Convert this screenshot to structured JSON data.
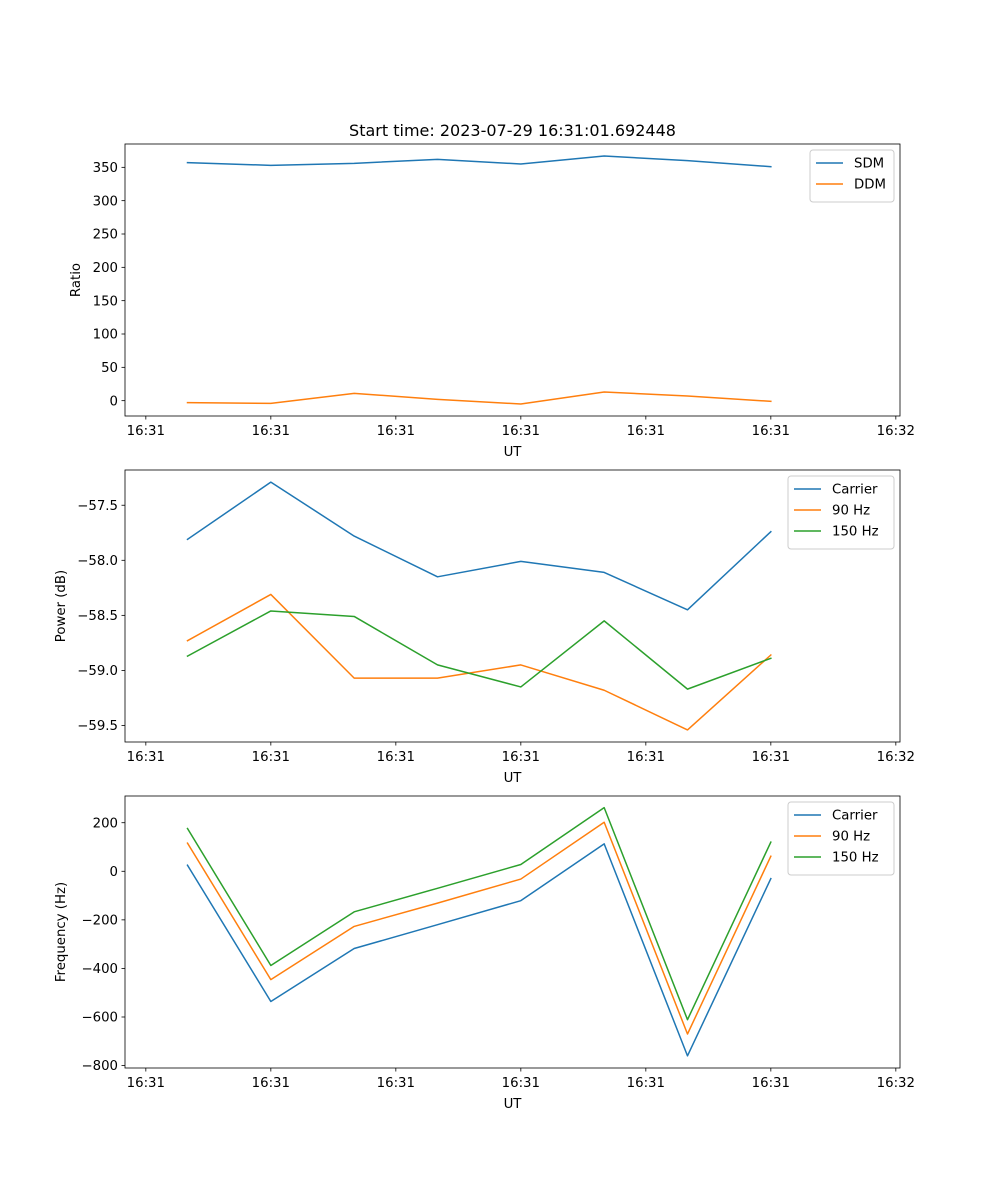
{
  "chart_data": [
    {
      "type": "line",
      "title": "Start time: 2023-07-29 16:31:01.692448",
      "xlabel": "UT",
      "ylabel": "Ratio",
      "xticks": [
        "16:31",
        "16:31",
        "16:31",
        "16:31",
        "16:31",
        "16:31",
        "16:32"
      ],
      "xlim": [
        -0.5,
        18.1
      ],
      "ylim": [
        -23,
        385
      ],
      "yticks": [
        0,
        50,
        100,
        150,
        200,
        250,
        300,
        350
      ],
      "ytick_labels": [
        "0",
        "50",
        "100",
        "150",
        "200",
        "250",
        "300",
        "350"
      ],
      "legend_position": "top-right",
      "x": [
        1,
        3,
        5,
        7,
        9,
        11,
        13,
        15
      ],
      "series": [
        {
          "name": "SDM",
          "color": "#1f77b4",
          "values": [
            357,
            353,
            356,
            362,
            355,
            367,
            360,
            351
          ]
        },
        {
          "name": "DDM",
          "color": "#ff7f0e",
          "values": [
            -3,
            -4,
            11,
            2,
            -5,
            13,
            7,
            -1
          ]
        }
      ]
    },
    {
      "type": "line",
      "title": "",
      "xlabel": "UT",
      "ylabel": "Power (dB)",
      "xticks": [
        "16:31",
        "16:31",
        "16:31",
        "16:31",
        "16:31",
        "16:31",
        "16:32"
      ],
      "xlim": [
        -0.5,
        18.1
      ],
      "ylim": [
        -59.65,
        -57.18
      ],
      "yticks": [
        -59.5,
        -59.0,
        -58.5,
        -58.0,
        -57.5
      ],
      "ytick_labels": [
        "−59.5",
        "−59.0",
        "−58.5",
        "−58.0",
        "−57.5"
      ],
      "legend_position": "top-right",
      "x": [
        1,
        3,
        5,
        7,
        9,
        11,
        13,
        15
      ],
      "series": [
        {
          "name": "Carrier",
          "color": "#1f77b4",
          "values": [
            -57.81,
            -57.29,
            -57.78,
            -58.15,
            -58.01,
            -58.11,
            -58.45,
            -57.74
          ]
        },
        {
          "name": "90 Hz",
          "color": "#ff7f0e",
          "values": [
            -58.73,
            -58.31,
            -59.07,
            -59.07,
            -58.95,
            -59.18,
            -59.54,
            -58.86
          ]
        },
        {
          "name": "150 Hz",
          "color": "#2ca02c",
          "values": [
            -58.87,
            -58.46,
            -58.51,
            -58.95,
            -59.15,
            -58.55,
            -59.17,
            -58.89
          ]
        }
      ]
    },
    {
      "type": "line",
      "title": "",
      "xlabel": "UT",
      "ylabel": "Frequency (Hz)",
      "xticks": [
        "16:31",
        "16:31",
        "16:31",
        "16:31",
        "16:31",
        "16:31",
        "16:32"
      ],
      "xlim": [
        -0.5,
        18.1
      ],
      "ylim": [
        -810,
        310
      ],
      "yticks": [
        -800,
        -600,
        -400,
        -200,
        0,
        200
      ],
      "ytick_labels": [
        "−800",
        "−600",
        "−400",
        "−200",
        "0",
        "200"
      ],
      "legend_position": "top-right",
      "x": [
        1,
        3,
        5,
        7,
        9,
        11,
        13,
        15
      ],
      "series": [
        {
          "name": "Carrier",
          "color": "#1f77b4",
          "values": [
            25,
            -536,
            -318,
            -220,
            -121,
            113,
            -760,
            -30
          ]
        },
        {
          "name": "90 Hz",
          "color": "#ff7f0e",
          "values": [
            116,
            -446,
            -227,
            -131,
            -32,
            202,
            -670,
            62
          ]
        },
        {
          "name": "150 Hz",
          "color": "#2ca02c",
          "values": [
            176,
            -388,
            -167,
            -70,
            28,
            262,
            -611,
            120
          ]
        }
      ]
    }
  ]
}
